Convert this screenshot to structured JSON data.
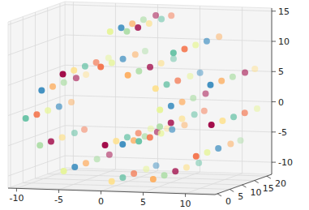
{
  "chart_data": {
    "type": "scatter3d",
    "x": [
      -0.1,
      -0.1,
      -0.1,
      -0.1,
      -0.1,
      1.4,
      1.4,
      1.4,
      1.4,
      1.4,
      3.9,
      3.9,
      3.9,
      3.9,
      3.9,
      5.8,
      5.8,
      5.8,
      5.8,
      5.8,
      6.4,
      6.4,
      6.4,
      6.4,
      6.4,
      5.3,
      5.3,
      5.3,
      5.3,
      5.3,
      2.6,
      2.6,
      2.6,
      2.6,
      2.6,
      -1.2,
      -1.2,
      -1.2,
      -1.2,
      -1.2,
      -5.1,
      -5.1,
      -5.1,
      -5.1,
      -5.1,
      -8.2,
      -8.2,
      -8.2,
      -8.2,
      -8.2,
      -9.5,
      -9.5,
      -9.5,
      -9.5,
      -9.5,
      -8.4,
      -8.4,
      -8.4,
      -8.4,
      -8.4,
      -5,
      -5,
      -5,
      -5,
      -5,
      0.1,
      0.1,
      0.1,
      0.1,
      0.1,
      5.6,
      5.6,
      5.6,
      5.6,
      5.6,
      10.1,
      10.1,
      10.1,
      10.1,
      10.1,
      12.5,
      12.5,
      12.5,
      12.5,
      12.5,
      11.8,
      11.8,
      11.8,
      11.8,
      11.8,
      8,
      8,
      8,
      8,
      8,
      1.9,
      1.9,
      1.9,
      1.9,
      1.9,
      0.5,
      0.5,
      0.5,
      0.5,
      0.5
    ],
    "y": [
      1,
      5.5,
      10,
      14.5,
      19.5,
      3,
      7.5,
      12,
      17,
      21,
      1,
      5.5,
      10,
      14.5,
      19.5,
      3,
      7.5,
      12,
      17,
      21,
      1,
      5.5,
      10,
      14.5,
      19.5,
      3,
      7.5,
      12,
      17,
      21,
      1,
      5.5,
      10,
      14.5,
      19.5,
      3,
      7.5,
      12,
      17,
      21,
      1,
      5.5,
      10,
      14.5,
      19.5,
      3,
      7.5,
      12,
      17,
      21,
      1,
      5.5,
      10,
      14.5,
      19.5,
      3,
      7.5,
      12,
      17,
      21,
      1,
      5.5,
      10,
      14.5,
      19.5,
      3,
      7.5,
      12,
      17,
      21,
      1,
      5.5,
      10,
      14.5,
      19.5,
      3,
      7.5,
      12,
      17,
      21,
      1,
      5.5,
      10,
      14.5,
      19.5,
      3,
      7.5,
      12,
      17,
      21,
      1,
      5.5,
      10,
      14.5,
      19.5,
      3,
      7.5,
      12,
      17,
      21,
      1,
      5.5,
      10,
      14.5,
      19.5
    ],
    "z": [
      -4.7,
      -4.7,
      -4.7,
      -4.7,
      -4.7,
      -4.8,
      -4.8,
      -4.8,
      -4.8,
      -4.8,
      -3.9,
      -3.9,
      -3.9,
      -3.9,
      -3.9,
      -1.7,
      -1.7,
      -1.7,
      -1.7,
      -1.7,
      1.4,
      1.4,
      1.4,
      1.4,
      1.4,
      4.6,
      4.6,
      4.6,
      4.6,
      4.6,
      7,
      7,
      7,
      7,
      7,
      7.9,
      7.9,
      7.9,
      7.9,
      7.9,
      6.8,
      6.8,
      6.8,
      6.8,
      6.8,
      3.7,
      3.7,
      3.7,
      3.7,
      3.7,
      -0.7,
      -0.7,
      -0.7,
      -0.7,
      -0.7,
      -5.4,
      -5.4,
      -5.4,
      -5.4,
      -5.4,
      -9.2,
      -9.2,
      -9.2,
      -9.2,
      -9.2,
      -11,
      -11,
      -11,
      -11,
      -11,
      -10.1,
      -10.1,
      -10.1,
      -10.1,
      -10.1,
      -6.4,
      -6.4,
      -6.4,
      -6.4,
      -6.4,
      -0.8,
      -0.8,
      -0.8,
      -0.8,
      -0.8,
      5.5,
      5.5,
      5.5,
      5.5,
      5.5,
      10.9,
      10.9,
      10.9,
      10.9,
      10.9,
      13.9,
      13.9,
      13.9,
      13.9,
      13.9,
      14.1,
      14.1,
      14.1,
      14.1,
      14.1
    ],
    "colors": [
      "#9e0142",
      "#fee08b",
      "#66c2a5",
      "#f46d43",
      "#e6f598",
      "#3288bd",
      "#fdae61",
      "#abdda4",
      "#9e0142",
      "#fee08b",
      "#66c2a5",
      "#f46d43",
      "#e6f598",
      "#3288bd",
      "#fdae61",
      "#abdda4",
      "#9e0142",
      "#fee08b",
      "#66c2a5",
      "#f46d43",
      "#e6f598",
      "#3288bd",
      "#fdae61",
      "#abdda4",
      "#9e0142",
      "#fee08b",
      "#66c2a5",
      "#f46d43",
      "#e6f598",
      "#3288bd",
      "#fdae61",
      "#abdda4",
      "#9e0142",
      "#fee08b",
      "#66c2a5",
      "#f46d43",
      "#e6f598",
      "#3288bd",
      "#fdae61",
      "#abdda4",
      "#9e0142",
      "#fee08b",
      "#66c2a5",
      "#f46d43",
      "#e6f598",
      "#3288bd",
      "#fdae61",
      "#abdda4",
      "#9e0142",
      "#fee08b",
      "#66c2a5",
      "#f46d43",
      "#e6f598",
      "#3288bd",
      "#fdae61",
      "#abdda4",
      "#9e0142",
      "#fee08b",
      "#66c2a5",
      "#f46d43",
      "#e6f598",
      "#3288bd",
      "#fdae61",
      "#abdda4",
      "#9e0142",
      "#fee08b",
      "#66c2a5",
      "#f46d43",
      "#e6f598",
      "#3288bd",
      "#fdae61",
      "#abdda4",
      "#9e0142",
      "#fee08b",
      "#66c2a5",
      "#f46d43",
      "#e6f598",
      "#3288bd",
      "#fdae61",
      "#abdda4",
      "#9e0142",
      "#fee08b",
      "#66c2a5",
      "#f46d43",
      "#e6f598",
      "#3288bd",
      "#fdae61",
      "#abdda4",
      "#9e0142",
      "#fee08b",
      "#66c2a5",
      "#f46d43",
      "#e6f598",
      "#3288bd",
      "#fdae61",
      "#abdda4",
      "#9e0142",
      "#fee08b",
      "#66c2a5",
      "#f46d43",
      "#e6f598",
      "#3288bd",
      "#fdae61",
      "#abdda4",
      "#9e0142"
    ],
    "xlim": [
      -11,
      13.5
    ],
    "ylim": [
      -1,
      22
    ],
    "zlim": [
      -12,
      15.5
    ],
    "xticks": [
      -10,
      -5,
      0,
      5,
      10
    ],
    "yticks": [
      0,
      5,
      10,
      15,
      20
    ],
    "zticks": [
      -10,
      -5,
      0,
      5,
      10,
      15
    ],
    "grid": true
  }
}
